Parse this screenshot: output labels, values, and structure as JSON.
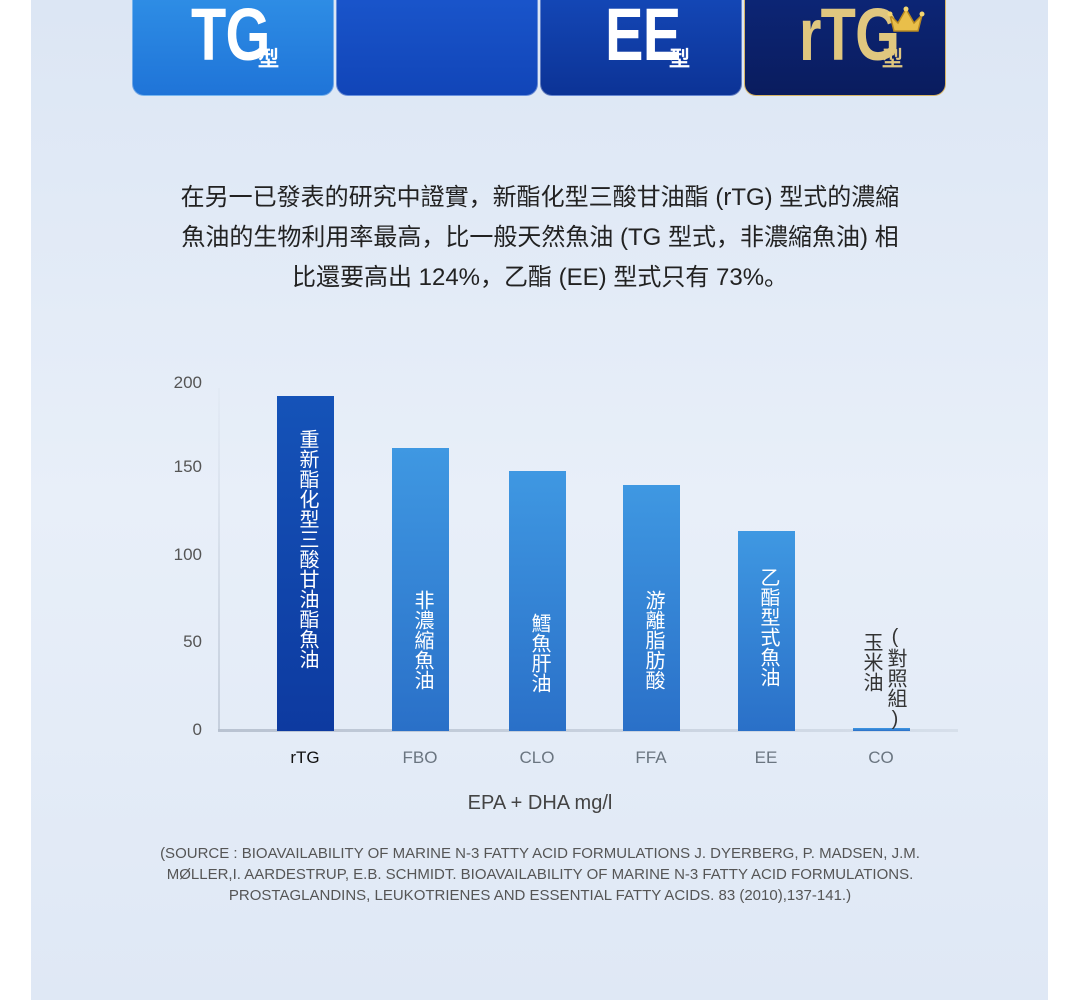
{
  "tabs": [
    {
      "big": "TG",
      "small": "型"
    },
    {
      "big": "",
      "small": ""
    },
    {
      "big": "EE",
      "small": "型"
    },
    {
      "big": "rTG",
      "small": "型"
    }
  ],
  "description": {
    "line1": "在另一已發表的研究中證實，新酯化型三酸甘油酯 (rTG) 型式的濃縮",
    "line2": "魚油的生物利用率最高，比一般天然魚油 (TG 型式，非濃縮魚油) 相",
    "line3": "比還要高出 124%，乙酯 (EE) 型式只有 73%。"
  },
  "chart_data": {
    "type": "bar",
    "categories": [
      "rTG",
      "FBO",
      "CLO",
      "FFA",
      "EE",
      "CO"
    ],
    "values": [
      193,
      163,
      150,
      142,
      115,
      2
    ],
    "bar_labels": [
      "重新酯化型三酸甘油酯魚油",
      "非濃縮魚油",
      "鱈魚肝油",
      "游離脂肪酸",
      "乙酯型式魚油",
      ""
    ],
    "co_label": {
      "col1": "玉米油",
      "col2": "(對照組)"
    },
    "yticks": [
      "200",
      "150",
      "100",
      "50",
      "0"
    ],
    "ylim": [
      0,
      200
    ],
    "xlabel": "EPA + DHA mg/l",
    "colors": {
      "highlight": "#0d3aa0",
      "bar": "#3b91de"
    }
  },
  "source": {
    "line1": "(SOURCE : BIOAVAILABILITY OF MARINE N-3 FATTY ACID FORMULATIONS J. DYERBERG, P. MADSEN, J.M.",
    "line2": "MØLLER,I. AARDESTRUP, E.B. SCHMIDT. BIOAVAILABILITY OF MARINE N-3 FATTY ACID FORMULATIONS.",
    "line3": "PROSTAGLANDINS, LEUKOTRIENES AND ESSENTIAL FATTY ACIDS. 83 (2010),137-141.)"
  }
}
